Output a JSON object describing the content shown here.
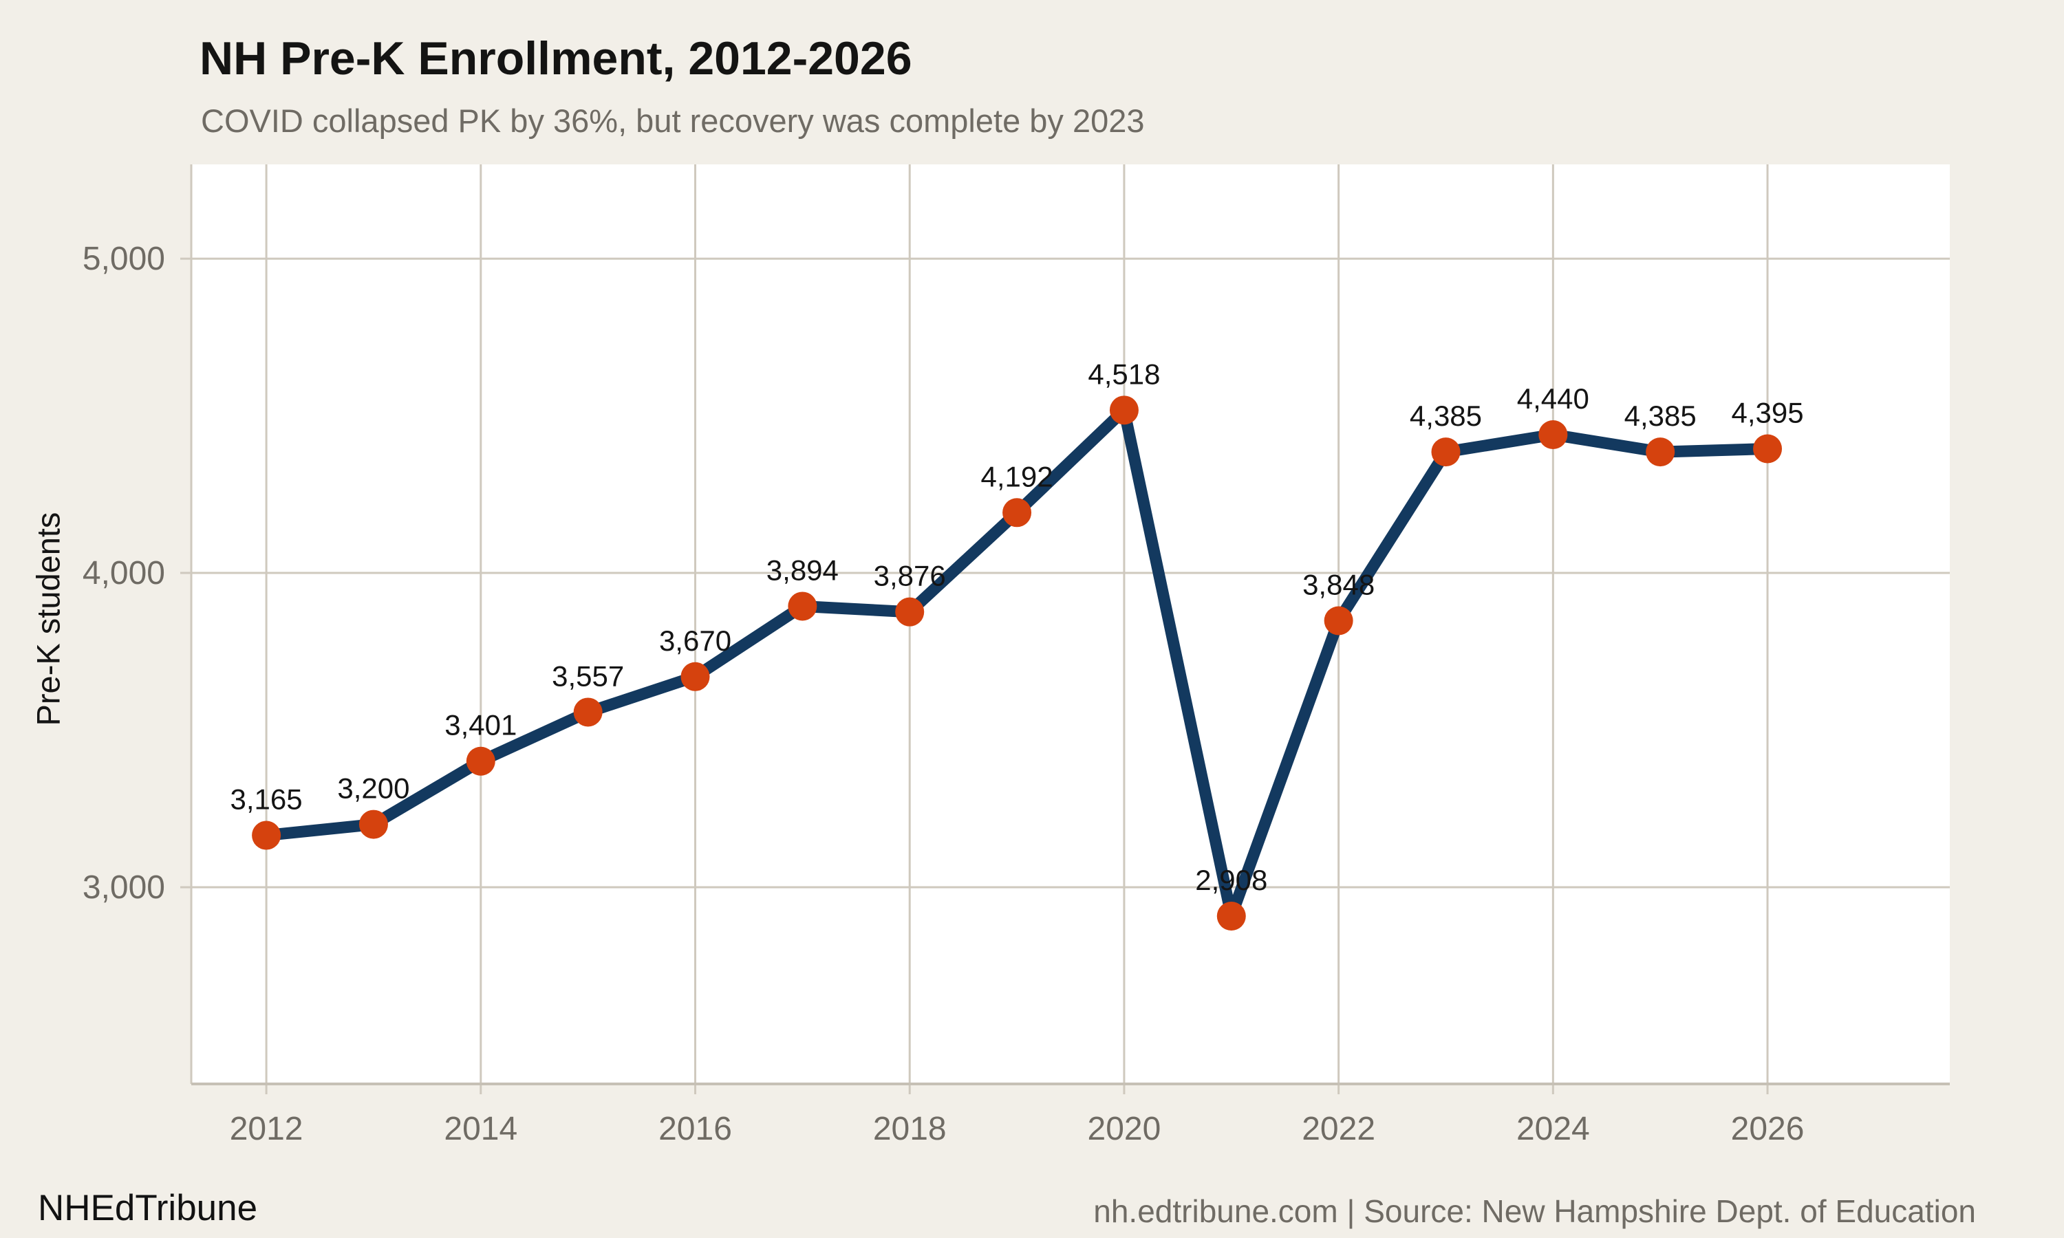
{
  "footer": {
    "brand": "NHEdTribune",
    "source": "nh.edtribune.com | Source: New Hampshire Dept. of Education"
  },
  "chart_data": {
    "type": "line",
    "title": "NH Pre-K Enrollment, 2012-2026",
    "subtitle": "COVID collapsed PK by 36%, but recovery was complete by 2023",
    "xlabel": "",
    "ylabel": "Pre-K students",
    "x": [
      2012,
      2013,
      2014,
      2015,
      2016,
      2017,
      2018,
      2019,
      2020,
      2021,
      2022,
      2023,
      2024,
      2025,
      2026
    ],
    "series": [
      {
        "name": "Pre-K students",
        "values": [
          3165,
          3200,
          3401,
          3557,
          3670,
          3894,
          3876,
          4192,
          4518,
          2908,
          3848,
          4385,
          4440,
          4385,
          4395
        ]
      }
    ],
    "point_labels": [
      "3,165",
      "3,200",
      "3,401",
      "3,557",
      "3,670",
      "3,894",
      "3,876",
      "4,192",
      "4,518",
      "2,908",
      "3,848",
      "4,385",
      "4,440",
      "4,385",
      "4,395"
    ],
    "xticks": [
      2012,
      2014,
      2016,
      2018,
      2020,
      2022,
      2024,
      2026
    ],
    "yticks": [
      {
        "value": 3000,
        "label": "3,000"
      },
      {
        "value": 4000,
        "label": "4,000"
      },
      {
        "value": 5000,
        "label": "5,000"
      }
    ],
    "xlim": [
      2011.3,
      2027.7
    ],
    "ylim": [
      2374,
      5300
    ],
    "grid": true,
    "legend_position": "none",
    "colors": {
      "background": "#f2efe8",
      "plot_background": "#ffffff",
      "line": "#13395f",
      "point": "#d5420e",
      "grid": "#cfc9be",
      "axis_line": "#c6c0b5",
      "axis_text": "#6f6b64",
      "title_text": "#141413",
      "label_text": "#141414",
      "source_text": "#6f6b64"
    }
  }
}
